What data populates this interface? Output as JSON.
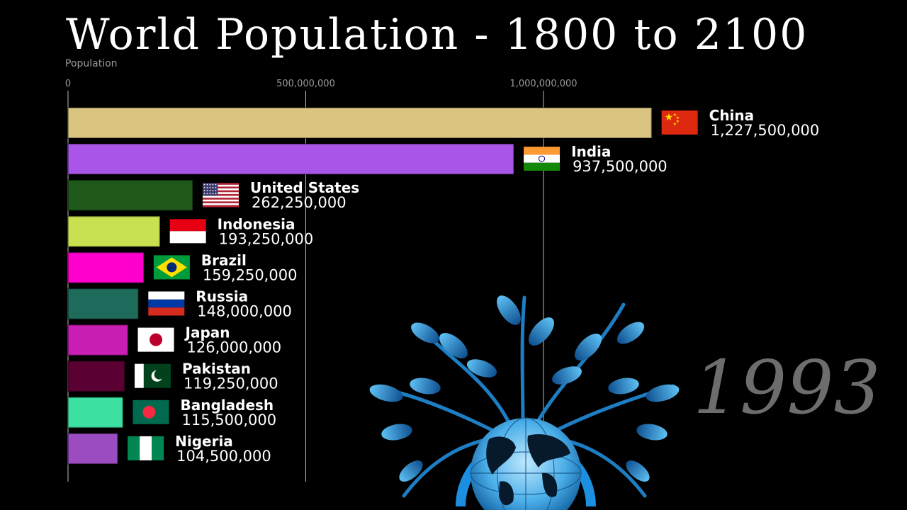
{
  "title": "World Population - 1800 to 2100",
  "year": "1993",
  "chart_data": {
    "type": "bar",
    "orientation": "horizontal",
    "ylabel": "Population",
    "xlim": [
      0,
      1290000000
    ],
    "x_ticks": [
      {
        "value": 0,
        "label": "0"
      },
      {
        "value": 500000000,
        "label": "500,000,000"
      },
      {
        "value": 1000000000,
        "label": "1,000,000,000"
      }
    ],
    "bars": [
      {
        "name": "China",
        "value": 1227500000,
        "label": "1,227,500,000",
        "color": "#d9c480",
        "flag": "china-flag-icon"
      },
      {
        "name": "India",
        "value": 937500000,
        "label": "937,500,000",
        "color": "#a855e8",
        "flag": "india-flag-icon"
      },
      {
        "name": "United States",
        "value": 262250000,
        "label": "262,250,000",
        "color": "#1f5a1a",
        "flag": "united-states-flag-icon"
      },
      {
        "name": "Indonesia",
        "value": 193250000,
        "label": "193,250,000",
        "color": "#c8e150",
        "flag": "indonesia-flag-icon"
      },
      {
        "name": "Brazil",
        "value": 159250000,
        "label": "159,250,000",
        "color": "#ff00cc",
        "flag": "brazil-flag-icon"
      },
      {
        "name": "Russia",
        "value": 148000000,
        "label": "148,000,000",
        "color": "#1e6b5c",
        "flag": "russia-flag-icon"
      },
      {
        "name": "Japan",
        "value": 126000000,
        "label": "126,000,000",
        "color": "#c81eb4",
        "flag": "japan-flag-icon"
      },
      {
        "name": "Pakistan",
        "value": 119250000,
        "label": "119,250,000",
        "color": "#5a0032",
        "flag": "pakistan-flag-icon"
      },
      {
        "name": "Bangladesh",
        "value": 115500000,
        "label": "115,500,000",
        "color": "#3ce0a0",
        "flag": "bangladesh-flag-icon"
      },
      {
        "name": "Nigeria",
        "value": 104500000,
        "label": "104,500,000",
        "color": "#9b4cc0",
        "flag": "nigeria-flag-icon"
      }
    ]
  }
}
